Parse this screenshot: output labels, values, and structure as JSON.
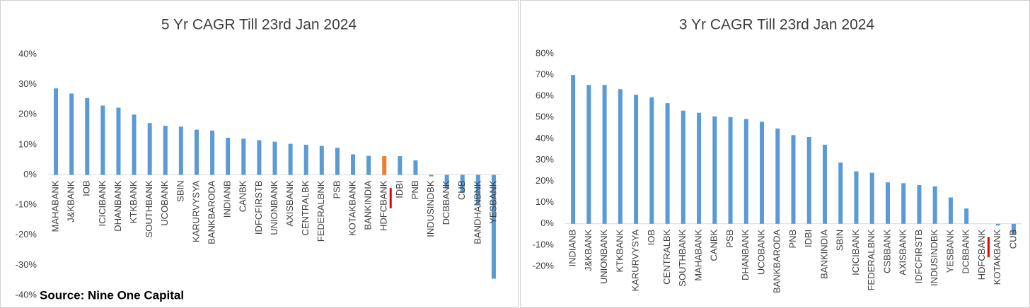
{
  "chart_data": [
    {
      "type": "bar",
      "title": "5 Yr CAGR Till 23rd Jan 2024",
      "source": "Source: Nine One Capital",
      "categories": [
        "MAHABANK",
        "J&KBANK",
        "IOB",
        "ICICIBANK",
        "DHANBANK",
        "KTKBANK",
        "SOUTHBANK",
        "UCOBANK",
        "SBIN",
        "KARURVYSYA",
        "BANKBARODA",
        "INDIANB",
        "CANBK",
        "IDFCFIRSTB",
        "UNIONBANK",
        "AXISBANK",
        "CENTRALBK",
        "FEDERALBNK",
        "PSB",
        "KOTAKBANK",
        "BANKINDIA",
        "HDFCBANK",
        "IDBI",
        "PNB",
        "INDUSINDBK",
        "DCBBANK",
        "CUB",
        "BANDHANBNK",
        "YESBANK"
      ],
      "values": [
        28.7,
        27,
        25.5,
        23,
        22.3,
        20,
        17.2,
        16.3,
        16,
        15,
        14.7,
        12.3,
        12,
        11.5,
        11,
        10.3,
        10,
        9.6,
        9,
        6.8,
        6.3,
        6.2,
        6.2,
        4.8,
        -0.5,
        -4.5,
        -6,
        -10,
        -34.5
      ],
      "colors": [
        "#5b9bd5",
        "#5b9bd5",
        "#5b9bd5",
        "#5b9bd5",
        "#5b9bd5",
        "#5b9bd5",
        "#5b9bd5",
        "#5b9bd5",
        "#5b9bd5",
        "#5b9bd5",
        "#5b9bd5",
        "#5b9bd5",
        "#5b9bd5",
        "#5b9bd5",
        "#5b9bd5",
        "#5b9bd5",
        "#5b9bd5",
        "#5b9bd5",
        "#5b9bd5",
        "#5b9bd5",
        "#5b9bd5",
        "#ed7d31",
        "#5b9bd5",
        "#5b9bd5",
        "#5b9bd5",
        "#5b9bd5",
        "#5b9bd5",
        "#5b9bd5",
        "#5b9bd5"
      ],
      "underline_categories": [
        "HDFCBANK"
      ],
      "underline_color": "#e00000",
      "ylim": [
        -40,
        40
      ],
      "yticks": [
        {
          "value": -40,
          "label": "-40%"
        },
        {
          "value": -30,
          "label": "-30%"
        },
        {
          "value": -20,
          "label": "-20%"
        },
        {
          "value": -10,
          "label": "-10%"
        },
        {
          "value": 0,
          "label": "0%"
        },
        {
          "value": 10,
          "label": "10%"
        },
        {
          "value": 20,
          "label": "20%"
        },
        {
          "value": 30,
          "label": "30%"
        },
        {
          "value": 40,
          "label": "40%"
        }
      ]
    },
    {
      "type": "bar",
      "title": "3 Yr CAGR Till 23rd Jan 2024",
      "categories": [
        "INDIANB",
        "J&KBANK",
        "UNIONBANK",
        "KTKBANK",
        "KARURVYSYA",
        "IOB",
        "CENTRALBK",
        "SOUTHBANK",
        "MAHABANK",
        "CANBK",
        "PSB",
        "DHANBANK",
        "UCOBANK",
        "BANKBARODA",
        "PNB",
        "IDBI",
        "BANKINDIA",
        "SBIN",
        "ICICIBANK",
        "FEDERALBNK",
        "CSBBANK",
        "AXISBANK",
        "IDFCFIRSTB",
        "INDUSINDBK",
        "YESBANK",
        "DCBBANK",
        "HDFCBANK",
        "KOTAKBANK",
        "CUB"
      ],
      "values": [
        70,
        65.3,
        65.3,
        63.3,
        60.7,
        59.5,
        56.7,
        53.2,
        52.2,
        50.5,
        50.2,
        49.3,
        48,
        44.8,
        41.7,
        40.8,
        37.2,
        28.8,
        24.7,
        24,
        19.5,
        19.1,
        18.2,
        17.6,
        12.4,
        7.2,
        0,
        -0.8,
        -5
      ],
      "color": "#5b9bd5",
      "underline_categories": [
        "HDFCBANK"
      ],
      "underline_color": "#e00000",
      "ylim": [
        -20,
        80
      ],
      "yticks": [
        {
          "value": -20,
          "label": "-20%"
        },
        {
          "value": -10,
          "label": "-10%"
        },
        {
          "value": 0,
          "label": "0%"
        },
        {
          "value": 10,
          "label": "10%"
        },
        {
          "value": 20,
          "label": "20%"
        },
        {
          "value": 30,
          "label": "30%"
        },
        {
          "value": 40,
          "label": "40%"
        },
        {
          "value": 50,
          "label": "50%"
        },
        {
          "value": 60,
          "label": "60%"
        },
        {
          "value": 70,
          "label": "70%"
        },
        {
          "value": 80,
          "label": "80%"
        }
      ]
    }
  ]
}
